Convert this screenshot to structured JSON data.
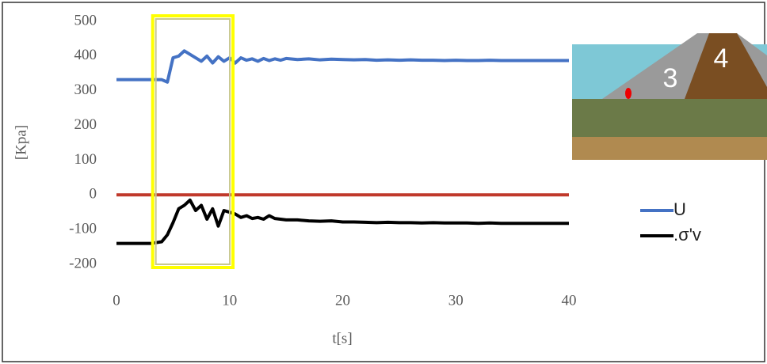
{
  "chart_data": {
    "type": "line",
    "x_label": "t[s]",
    "y_label": "[Kpa]",
    "x": [
      0,
      1,
      2,
      3,
      4,
      4.5,
      5,
      5.5,
      6,
      6.5,
      7,
      7.5,
      8,
      8.5,
      9,
      9.5,
      10,
      10.5,
      11,
      11.5,
      12,
      12.5,
      13,
      13.5,
      14,
      14.5,
      15,
      16,
      17,
      18,
      19,
      20,
      21,
      22,
      23,
      24,
      25,
      26,
      27,
      28,
      29,
      30,
      31,
      32,
      33,
      34,
      35,
      36,
      37,
      38,
      39,
      40
    ],
    "series": [
      {
        "name": "U",
        "color": "#4472c4",
        "values": [
          332,
          332,
          332,
          332,
          332,
          325,
          395,
          400,
          415,
          405,
          395,
          385,
          400,
          380,
          398,
          385,
          395,
          380,
          395,
          388,
          392,
          385,
          393,
          387,
          392,
          388,
          393,
          390,
          392,
          389,
          391,
          390,
          389,
          390,
          388,
          389,
          388,
          389,
          388,
          388,
          387,
          388,
          387,
          387,
          388,
          387,
          387,
          387,
          387,
          387,
          387,
          387
        ]
      },
      {
        "name": ".σ'v",
        "color": "#000000",
        "values": [
          -140,
          -140,
          -140,
          -140,
          -135,
          -115,
          -80,
          -40,
          -30,
          -15,
          -45,
          -30,
          -70,
          -40,
          -90,
          -45,
          -50,
          -55,
          -65,
          -60,
          -68,
          -65,
          -70,
          -60,
          -68,
          -70,
          -72,
          -72,
          -75,
          -76,
          -75,
          -78,
          -78,
          -79,
          -80,
          -79,
          -80,
          -80,
          -81,
          -80,
          -81,
          -81,
          -81,
          -82,
          -81,
          -82,
          -82,
          -82,
          -82,
          -82,
          -82,
          -82
        ]
      }
    ],
    "xlim": [
      0,
      40
    ],
    "xticks": [
      0,
      10,
      20,
      30,
      40
    ],
    "ylim": [
      -200,
      500
    ],
    "yticks": [
      500,
      400,
      300,
      200,
      100,
      0,
      -100,
      -200
    ],
    "zero_line_color": "#c0392b",
    "highlight_x": [
      3.2,
      10.3
    ],
    "highlight_color": "#ffff00",
    "inset_labels": [
      "3",
      "4"
    ]
  }
}
